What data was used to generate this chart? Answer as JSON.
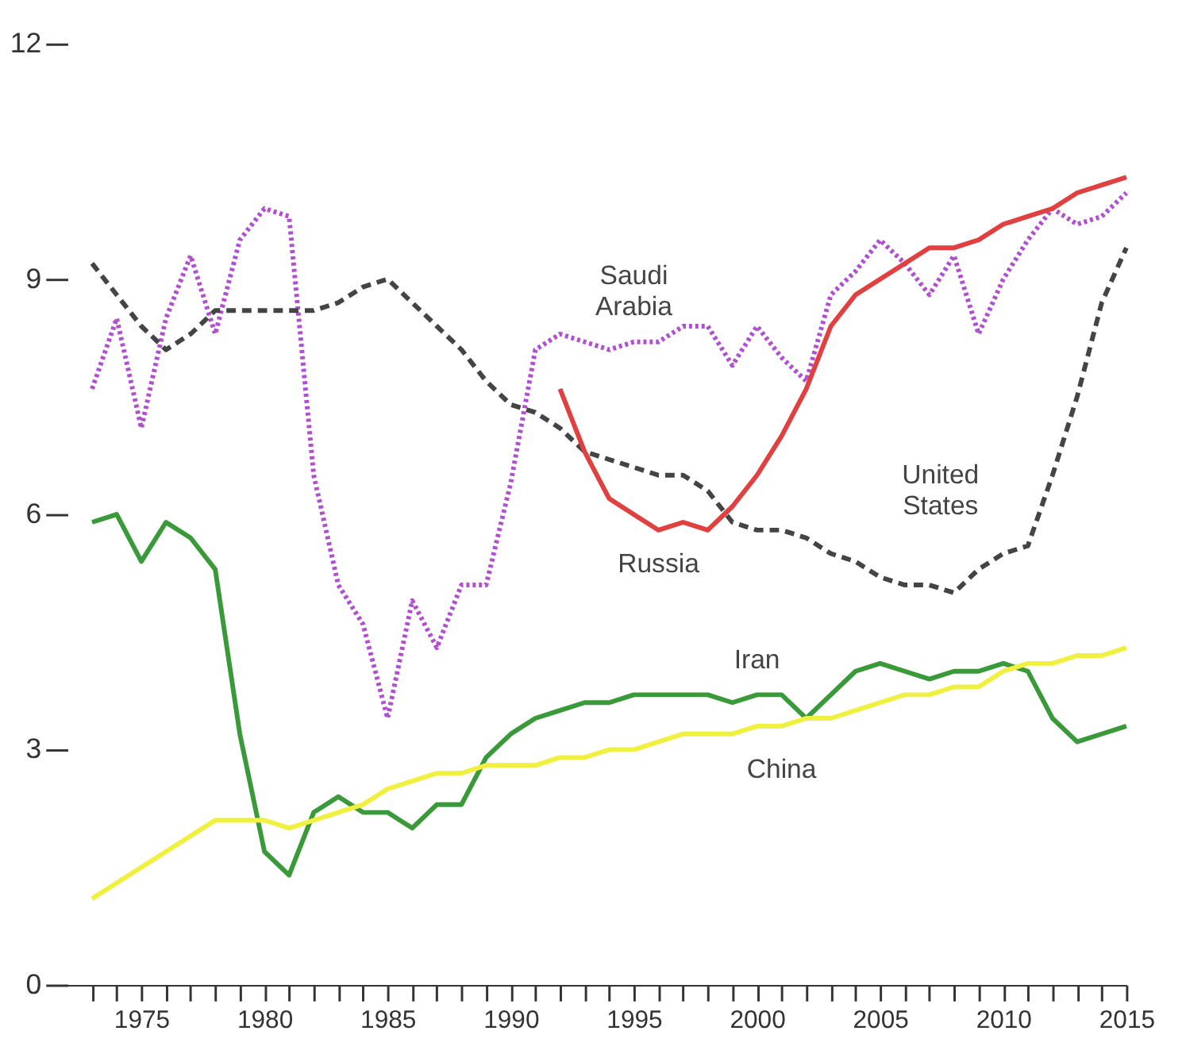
{
  "chart_data": {
    "type": "line",
    "x": [
      1973,
      1974,
      1975,
      1976,
      1977,
      1978,
      1979,
      1980,
      1981,
      1982,
      1983,
      1984,
      1985,
      1986,
      1987,
      1988,
      1989,
      1990,
      1991,
      1992,
      1993,
      1994,
      1995,
      1996,
      1997,
      1998,
      1999,
      2000,
      2001,
      2002,
      2003,
      2004,
      2005,
      2006,
      2007,
      2008,
      2009,
      2010,
      2011,
      2012,
      2013,
      2014,
      2015
    ],
    "series": [
      {
        "name": "Saudi\nArabia",
        "color": "#b04fd0",
        "line_style": "dotted",
        "values": [
          7.6,
          8.5,
          7.1,
          8.5,
          9.3,
          8.3,
          9.5,
          9.9,
          9.8,
          6.5,
          5.1,
          4.6,
          3.4,
          4.9,
          4.3,
          5.1,
          5.1,
          6.4,
          8.1,
          8.3,
          8.2,
          8.1,
          8.2,
          8.2,
          8.4,
          8.4,
          7.9,
          8.4,
          8.0,
          7.7,
          8.8,
          9.1,
          9.5,
          9.2,
          8.8,
          9.3,
          8.3,
          9.0,
          9.5,
          9.9,
          9.7,
          9.8,
          10.1
        ]
      },
      {
        "name": "United\nStates",
        "color": "#444444",
        "line_style": "dashed",
        "values": [
          9.2,
          8.8,
          8.4,
          8.1,
          8.3,
          8.6,
          8.6,
          8.6,
          8.6,
          8.6,
          8.7,
          8.9,
          9.0,
          8.7,
          8.4,
          8.1,
          7.7,
          7.4,
          7.3,
          7.1,
          6.8,
          6.7,
          6.6,
          6.5,
          6.5,
          6.3,
          5.9,
          5.8,
          5.8,
          5.7,
          5.5,
          5.4,
          5.2,
          5.1,
          5.1,
          5.0,
          5.3,
          5.5,
          5.6,
          6.5,
          7.5,
          8.7,
          9.4
        ]
      },
      {
        "name": "Russia",
        "color": "#e04040",
        "line_style": "solid",
        "x": [
          1992,
          1993,
          1994,
          1995,
          1996,
          1997,
          1998,
          1999,
          2000,
          2001,
          2002,
          2003,
          2004,
          2005,
          2006,
          2007,
          2008,
          2009,
          2010,
          2011,
          2012,
          2013,
          2014,
          2015
        ],
        "values": [
          7.6,
          6.8,
          6.2,
          6.0,
          5.8,
          5.9,
          5.8,
          6.1,
          6.5,
          7.0,
          7.6,
          8.4,
          8.8,
          9.0,
          9.2,
          9.4,
          9.4,
          9.5,
          9.7,
          9.8,
          9.9,
          10.1,
          10.2,
          10.3
        ]
      },
      {
        "name": "Iran",
        "color": "#3a9a3a",
        "line_style": "solid",
        "values": [
          5.9,
          6.0,
          5.4,
          5.9,
          5.7,
          5.3,
          3.2,
          1.7,
          1.4,
          2.2,
          2.4,
          2.2,
          2.2,
          2.0,
          2.3,
          2.3,
          2.9,
          3.2,
          3.4,
          3.5,
          3.6,
          3.6,
          3.7,
          3.7,
          3.7,
          3.7,
          3.6,
          3.7,
          3.7,
          3.4,
          3.7,
          4.0,
          4.1,
          4.0,
          3.9,
          4.0,
          4.0,
          4.1,
          4.0,
          3.4,
          3.1,
          3.2,
          3.3
        ]
      },
      {
        "name": "China",
        "color": "#f0f040",
        "line_style": "solid",
        "values": [
          1.1,
          1.3,
          1.5,
          1.7,
          1.9,
          2.1,
          2.1,
          2.1,
          2.0,
          2.1,
          2.2,
          2.3,
          2.5,
          2.6,
          2.7,
          2.7,
          2.8,
          2.8,
          2.8,
          2.9,
          2.9,
          3.0,
          3.0,
          3.1,
          3.2,
          3.2,
          3.2,
          3.3,
          3.3,
          3.4,
          3.4,
          3.5,
          3.6,
          3.7,
          3.7,
          3.8,
          3.8,
          4.0,
          4.1,
          4.1,
          4.2,
          4.2,
          4.3
        ]
      }
    ],
    "xlim": [
      1972,
      2015
    ],
    "xticks": [
      {
        "value": 1973,
        "label": null
      },
      {
        "value": 1974,
        "label": null
      },
      1975,
      {
        "value": 1976,
        "label": null
      },
      {
        "value": 1977,
        "label": null
      },
      {
        "value": 1978,
        "label": null
      },
      {
        "value": 1979,
        "label": null
      },
      1980,
      {
        "value": 1981,
        "label": null
      },
      {
        "value": 1982,
        "label": null
      },
      {
        "value": 1983,
        "label": null
      },
      {
        "value": 1984,
        "label": null
      },
      1985,
      {
        "value": 1986,
        "label": null
      },
      {
        "value": 1987,
        "label": null
      },
      {
        "value": 1988,
        "label": null
      },
      {
        "value": 1989,
        "label": null
      },
      1990,
      {
        "value": 1991,
        "label": null
      },
      {
        "value": 1992,
        "label": null
      },
      {
        "value": 1993,
        "label": null
      },
      {
        "value": 1994,
        "label": null
      },
      1995,
      {
        "value": 1996,
        "label": null
      },
      {
        "value": 1997,
        "label": null
      },
      {
        "value": 1998,
        "label": null
      },
      {
        "value": 1999,
        "label": null
      },
      2000,
      {
        "value": 2001,
        "label": null
      },
      {
        "value": 2002,
        "label": null
      },
      {
        "value": 2003,
        "label": null
      },
      {
        "value": 2004,
        "label": null
      },
      2005,
      {
        "value": 2006,
        "label": null
      },
      {
        "value": 2007,
        "label": null
      },
      {
        "value": 2008,
        "label": null
      },
      {
        "value": 2009,
        "label": null
      },
      2010,
      {
        "value": 2011,
        "label": null
      },
      {
        "value": 2012,
        "label": null
      },
      {
        "value": 2013,
        "label": null
      },
      {
        "value": 2014,
        "label": null
      },
      2015
    ],
    "ylim": [
      0,
      12
    ],
    "yticks": [
      0,
      3,
      6,
      9,
      12
    ],
    "grid": false
  }
}
